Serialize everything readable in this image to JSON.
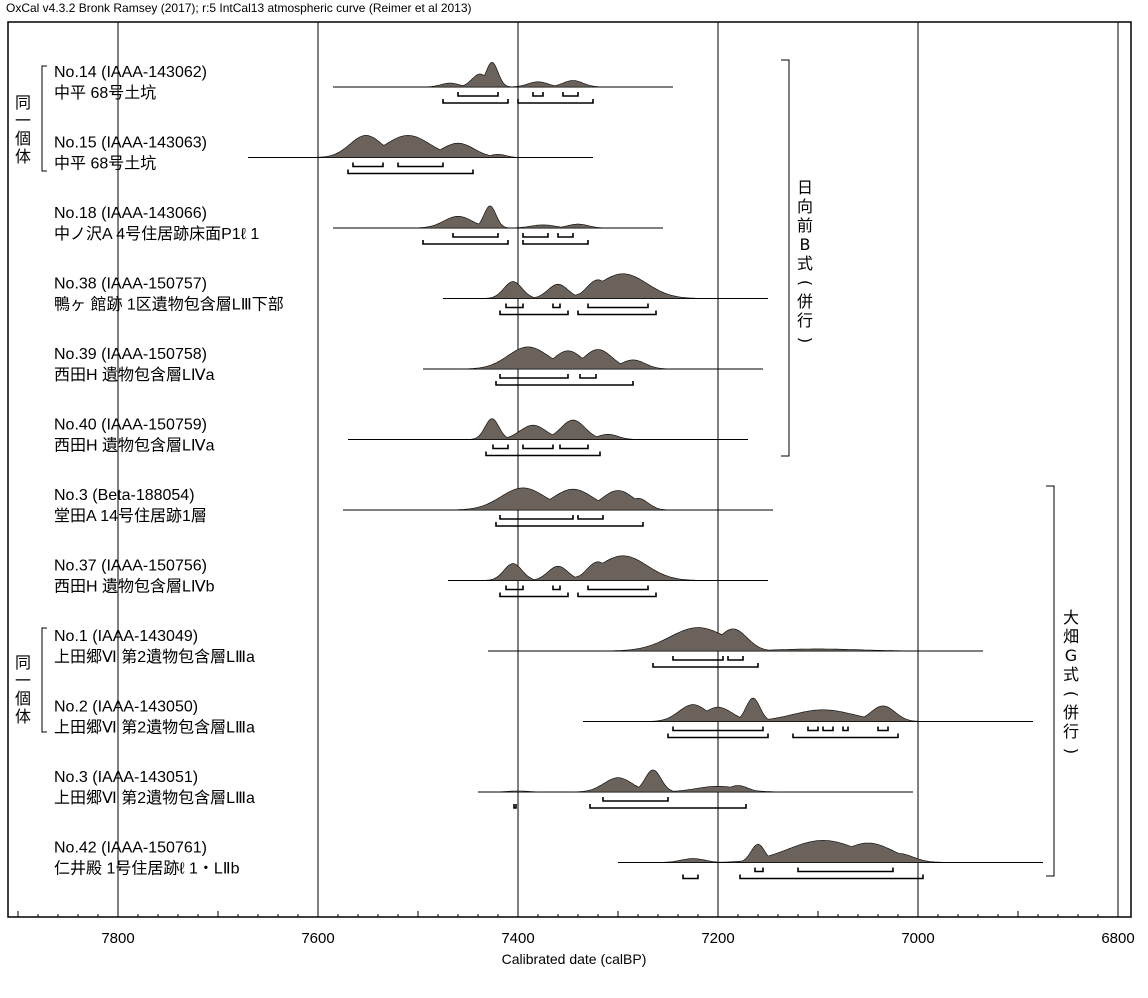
{
  "credit": "OxCal v4.3.2 Bronk Ramsey (2017); r:5 IntCal13 atmospheric curve (Reimer et al 2013)",
  "chart_data": {
    "type": "area",
    "title": "",
    "xlabel": "Calibrated date (calBP)",
    "ylabel": "",
    "xlim": [
      7900,
      6800
    ],
    "x_direction": "descending",
    "xticks": [
      7800,
      7600,
      7400,
      7200,
      7000,
      6800
    ],
    "xtick_labels": [
      "7800",
      "7600",
      "7400",
      "7200",
      "7000",
      "6800"
    ],
    "grid": "vertical lines at major ticks",
    "colors": {
      "distribution": "#6b625c",
      "line": "#000000"
    },
    "samples": [
      {
        "id": "No.14 (IAAA-143062)",
        "site": "中平 68号土坑",
        "range": [
          7585,
          7245
        ],
        "peaks": [
          [
            7468,
            0.15,
            9
          ],
          [
            7438,
            0.5,
            8
          ],
          [
            7426,
            0.95,
            6
          ],
          [
            7380,
            0.2,
            10
          ],
          [
            7345,
            0.25,
            10
          ]
        ],
        "sigma1": [
          [
            7460,
            7420
          ],
          [
            7385,
            7375
          ],
          [
            7355,
            7340
          ]
        ],
        "sigma2": [
          [
            7475,
            7410
          ],
          [
            7400,
            7325
          ]
        ]
      },
      {
        "id": "No.15 (IAAA-143063)",
        "site": "中平 68号土坑",
        "range": [
          7670,
          7325
        ],
        "peaks": [
          [
            7552,
            0.85,
            16
          ],
          [
            7510,
            0.85,
            22
          ],
          [
            7460,
            0.55,
            16
          ],
          [
            7420,
            0.12,
            8
          ]
        ],
        "sigma1": [
          [
            7565,
            7535
          ],
          [
            7520,
            7475
          ]
        ],
        "sigma2": [
          [
            7570,
            7445
          ]
        ]
      },
      {
        "id": "No.18 (IAAA-143066)",
        "site": "中ノ沢A 4号住居跡床面P1ℓ 1",
        "range": [
          7585,
          7255
        ],
        "peaks": [
          [
            7460,
            0.45,
            14
          ],
          [
            7428,
            0.85,
            6
          ],
          [
            7375,
            0.12,
            12
          ],
          [
            7340,
            0.15,
            10
          ]
        ],
        "sigma1": [
          [
            7465,
            7420
          ],
          [
            7395,
            7370
          ],
          [
            7360,
            7345
          ]
        ],
        "sigma2": [
          [
            7495,
            7410
          ],
          [
            7395,
            7330
          ]
        ]
      },
      {
        "id": "No.38 (IAAA-150757)",
        "site": "鴨ヶ 館跡 1区遺物包含層LⅢ下部",
        "range": [
          7475,
          7150
        ],
        "peaks": [
          [
            7405,
            0.65,
            9
          ],
          [
            7360,
            0.55,
            10
          ],
          [
            7320,
            0.72,
            11
          ],
          [
            7295,
            0.95,
            24
          ]
        ],
        "sigma1": [
          [
            7412,
            7395
          ],
          [
            7365,
            7358
          ],
          [
            7330,
            7270
          ]
        ],
        "sigma2": [
          [
            7418,
            7350
          ],
          [
            7340,
            7262
          ]
        ]
      },
      {
        "id": "No.39 (IAAA-150758)",
        "site": "西田H 遺物包含層LⅣa",
        "range": [
          7495,
          7155
        ],
        "peaks": [
          [
            7390,
            0.85,
            20
          ],
          [
            7350,
            0.7,
            14
          ],
          [
            7320,
            0.75,
            14
          ],
          [
            7285,
            0.35,
            12
          ]
        ],
        "sigma1": [
          [
            7418,
            7350
          ],
          [
            7338,
            7322
          ]
        ],
        "sigma2": [
          [
            7422,
            7285
          ]
        ]
      },
      {
        "id": "No.40 (IAAA-150759)",
        "site": "西田H 遺物包含層LⅣa",
        "range": [
          7570,
          7170
        ],
        "peaks": [
          [
            7426,
            0.8,
            7
          ],
          [
            7385,
            0.55,
            13
          ],
          [
            7345,
            0.75,
            12
          ],
          [
            7310,
            0.2,
            10
          ]
        ],
        "sigma1": [
          [
            7425,
            7410
          ],
          [
            7395,
            7365
          ],
          [
            7358,
            7330
          ]
        ],
        "sigma2": [
          [
            7432,
            7318
          ]
        ]
      },
      {
        "id": "No.3 (Beta-188054)",
        "site": "堂田A 14号住居跡1層",
        "range": [
          7575,
          7145
        ],
        "peaks": [
          [
            7395,
            0.85,
            22
          ],
          [
            7345,
            0.8,
            20
          ],
          [
            7300,
            0.75,
            16
          ],
          [
            7280,
            0.45,
            10
          ]
        ],
        "sigma1": [
          [
            7418,
            7345
          ],
          [
            7340,
            7315
          ]
        ],
        "sigma2": [
          [
            7422,
            7275
          ]
        ]
      },
      {
        "id": "No.37 (IAAA-150756)",
        "site": "西田H 遺物包含層LⅣb",
        "range": [
          7470,
          7150
        ],
        "peaks": [
          [
            7405,
            0.65,
            9
          ],
          [
            7360,
            0.55,
            10
          ],
          [
            7320,
            0.72,
            11
          ],
          [
            7295,
            0.95,
            24
          ]
        ],
        "sigma1": [
          [
            7412,
            7395
          ],
          [
            7365,
            7358
          ],
          [
            7330,
            7270
          ]
        ],
        "sigma2": [
          [
            7418,
            7350
          ],
          [
            7340,
            7262
          ]
        ]
      },
      {
        "id": "No.1 (IAAA-143049)",
        "site": "上田郷Ⅵ 第2遺物包含層LⅢa",
        "range": [
          7430,
          6935
        ],
        "peaks": [
          [
            7220,
            0.9,
            28
          ],
          [
            7185,
            0.85,
            14
          ],
          [
            7100,
            0.08,
            40
          ]
        ],
        "sigma1": [
          [
            7245,
            7195
          ],
          [
            7190,
            7175
          ]
        ],
        "sigma2": [
          [
            7265,
            7160
          ]
        ]
      },
      {
        "id": "No.2 (IAAA-143050)",
        "site": "上田郷Ⅵ 第2遺物包含層LⅢa",
        "range": [
          7335,
          6885
        ],
        "peaks": [
          [
            7225,
            0.65,
            14
          ],
          [
            7200,
            0.55,
            14
          ],
          [
            7165,
            0.9,
            7
          ],
          [
            7095,
            0.45,
            30
          ],
          [
            7035,
            0.6,
            12
          ]
        ],
        "sigma1": [
          [
            7245,
            7155
          ],
          [
            7110,
            7100
          ],
          [
            7095,
            7085
          ],
          [
            7075,
            7070
          ],
          [
            7040,
            7030
          ]
        ],
        "sigma2": [
          [
            7250,
            7150
          ],
          [
            7125,
            7020
          ]
        ]
      },
      {
        "id": "No.3 (IAAA-143051)",
        "site": "上田郷Ⅵ 第2遺物包含層LⅢa",
        "range": [
          7440,
          7005
        ],
        "peaks": [
          [
            7400,
            0.04,
            10
          ],
          [
            7300,
            0.55,
            14
          ],
          [
            7265,
            0.85,
            8
          ],
          [
            7200,
            0.22,
            22
          ],
          [
            7180,
            0.25,
            10
          ]
        ],
        "sigma1": [
          [
            7315,
            7250
          ]
        ],
        "sigma2": [
          [
            7404,
            7402
          ],
          [
            7328,
            7172
          ]
        ]
      },
      {
        "id": "No.42 (IAAA-150761)",
        "site": "仁井殿 1号住居跡ℓ 1・LⅡb",
        "range": [
          7300,
          6875
        ],
        "peaks": [
          [
            7225,
            0.15,
            12
          ],
          [
            7160,
            0.7,
            7
          ],
          [
            7095,
            0.85,
            35
          ],
          [
            7050,
            0.75,
            25
          ],
          [
            7020,
            0.35,
            15
          ]
        ],
        "sigma1": [
          [
            7163,
            7155
          ],
          [
            7120,
            7025
          ]
        ],
        "sigma2": [
          [
            7235,
            7220
          ],
          [
            7178,
            6995
          ]
        ]
      }
    ]
  },
  "groups": {
    "same_individual": "同一個体",
    "hinata": "日向前B式（併行）",
    "ohata": "大畑G式（併行）"
  }
}
